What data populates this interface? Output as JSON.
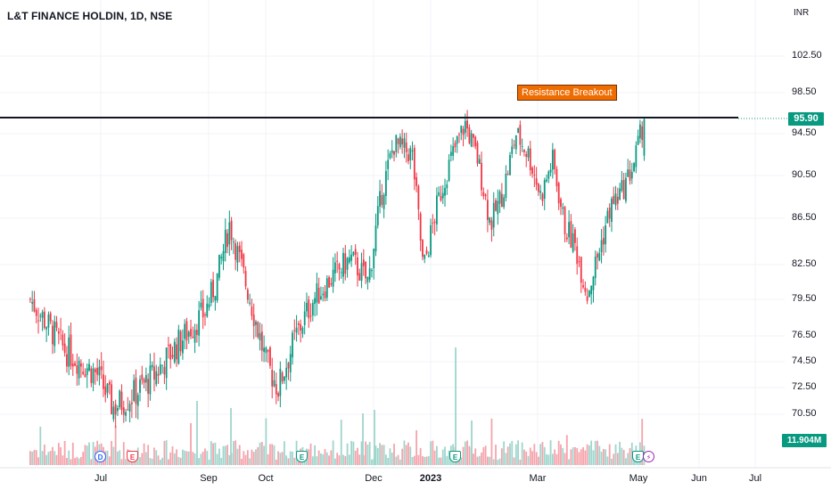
{
  "header": {
    "symbol_line": "L&T FINANCE HOLDIN, 1D, NSE",
    "currency": "INR"
  },
  "colors": {
    "up": "#089981",
    "down": "#f23645",
    "up_volume": "#9fd5cc",
    "down_volume": "#f5a3ab",
    "line": "#131722",
    "note_bg": "#ef6c00"
  },
  "annotation": {
    "label": "Resistance Breakout"
  },
  "price_axis": {
    "labels": [
      "102.50",
      "98.50",
      "94.50",
      "90.50",
      "86.50",
      "82.50",
      "79.50",
      "76.50",
      "74.50",
      "72.50",
      "70.50"
    ],
    "last_price": "95.90",
    "last_volume": "11.904M"
  },
  "time_axis": {
    "labels": [
      "Jul",
      "Sep",
      "Oct",
      "Dec",
      "2023",
      "Mar",
      "May",
      "Jun",
      "Jul"
    ]
  },
  "events": [
    {
      "type": "dividend",
      "letter": "D"
    },
    {
      "type": "earnings",
      "letter": "E"
    },
    {
      "type": "earnings",
      "letter": "E"
    },
    {
      "type": "earnings",
      "letter": "E"
    },
    {
      "type": "earnings",
      "letter": "E"
    },
    {
      "type": "split",
      "letter": "⚡"
    }
  ],
  "chart_data": {
    "type": "candlestick",
    "title": "L&T FINANCE HOLDIN, 1D, NSE",
    "y_axis_labels": [
      102.5,
      98.5,
      94.5,
      90.5,
      86.5,
      82.5,
      79.5,
      76.5,
      74.5,
      72.5,
      70.5
    ],
    "x_axis_labels": [
      "Jul",
      "Sep",
      "Oct",
      "Dec",
      "2023",
      "Mar",
      "May",
      "Jun",
      "Jul"
    ],
    "resistance_level": 95.9,
    "last_close": 95.9,
    "last_volume": "11.904M",
    "close_path": [
      {
        "date": "2022-06-10",
        "close": 79.5
      },
      {
        "date": "2022-06-20",
        "close": 75.5
      },
      {
        "date": "2022-06-30",
        "close": 73.5
      },
      {
        "date": "2022-07-08",
        "close": 71.0
      },
      {
        "date": "2022-07-20",
        "close": 72.0
      },
      {
        "date": "2022-08-01",
        "close": 73.5
      },
      {
        "date": "2022-08-15",
        "close": 76.0
      },
      {
        "date": "2022-08-30",
        "close": 78.5
      },
      {
        "date": "2022-09-05",
        "close": 81.0
      },
      {
        "date": "2022-09-12",
        "close": 86.0
      },
      {
        "date": "2022-09-22",
        "close": 80.0
      },
      {
        "date": "2022-10-01",
        "close": 74.5
      },
      {
        "date": "2022-10-08",
        "close": 72.5
      },
      {
        "date": "2022-10-18",
        "close": 76.5
      },
      {
        "date": "2022-10-28",
        "close": 79.5
      },
      {
        "date": "2022-11-08",
        "close": 81.5
      },
      {
        "date": "2022-11-18",
        "close": 83.0
      },
      {
        "date": "2022-11-28",
        "close": 81.0
      },
      {
        "date": "2022-12-05",
        "close": 88.5
      },
      {
        "date": "2022-12-12",
        "close": 93.5
      },
      {
        "date": "2022-12-22",
        "close": 92.5
      },
      {
        "date": "2022-12-28",
        "close": 82.0
      },
      {
        "date": "2023-01-05",
        "close": 88.0
      },
      {
        "date": "2023-01-12",
        "close": 92.0
      },
      {
        "date": "2023-01-20",
        "close": 95.5
      },
      {
        "date": "2023-01-27",
        "close": 92.0
      },
      {
        "date": "2023-02-03",
        "close": 86.0
      },
      {
        "date": "2023-02-10",
        "close": 89.0
      },
      {
        "date": "2023-02-17",
        "close": 94.5
      },
      {
        "date": "2023-02-24",
        "close": 92.5
      },
      {
        "date": "2023-03-03",
        "close": 88.5
      },
      {
        "date": "2023-03-10",
        "close": 92.0
      },
      {
        "date": "2023-03-17",
        "close": 86.0
      },
      {
        "date": "2023-03-24",
        "close": 84.0
      },
      {
        "date": "2023-03-31",
        "close": 80.0
      },
      {
        "date": "2023-04-07",
        "close": 83.5
      },
      {
        "date": "2023-04-14",
        "close": 87.5
      },
      {
        "date": "2023-04-21",
        "close": 89.0
      },
      {
        "date": "2023-04-28",
        "close": 91.5
      },
      {
        "date": "2023-05-04",
        "close": 95.9
      }
    ],
    "grid": true,
    "legend": "none"
  }
}
